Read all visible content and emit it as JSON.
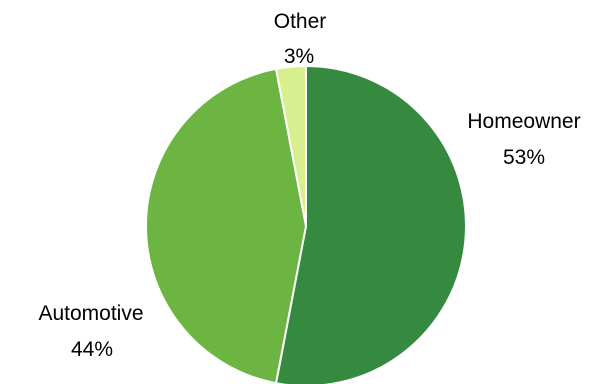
{
  "chart_data": {
    "type": "pie",
    "title": "",
    "slices": [
      {
        "label": "Homeowner",
        "percent_label": "53%",
        "value": 53,
        "color": "#358a40"
      },
      {
        "label": "Automotive",
        "percent_label": "44%",
        "value": 44,
        "color": "#6db543"
      },
      {
        "label": "Other",
        "percent_label": "3%",
        "value": 3,
        "color": "#d7ef8f"
      }
    ],
    "start_angle_deg": 0,
    "direction": "clockwise",
    "legend": "none"
  }
}
